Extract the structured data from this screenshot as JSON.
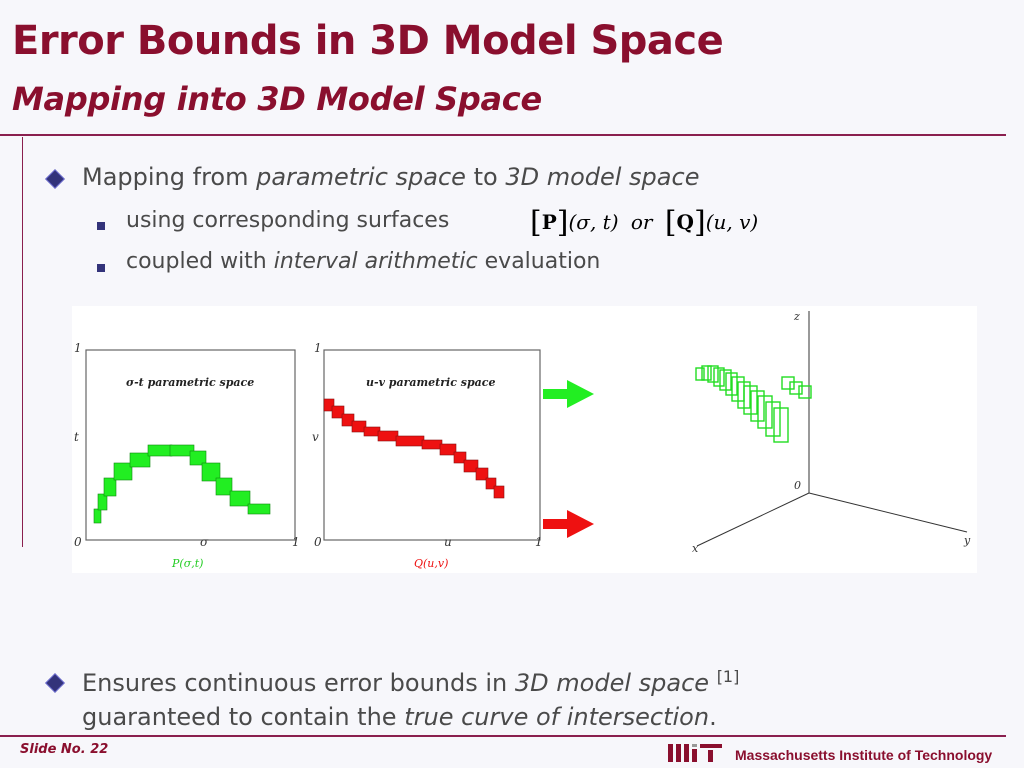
{
  "title": "Error Bounds in 3D Model Space",
  "subtitle": "Mapping into 3D Model Space",
  "bullet1": {
    "pre": "Mapping from ",
    "em1": "parametric space",
    "mid": " to ",
    "em2": "3D model space"
  },
  "sub1": {
    "text": "using corresponding surfaces"
  },
  "math": {
    "P": "P",
    "Pargs": "(σ, t)",
    "or": "or",
    "Q": "Q",
    "Qargs": "(u, v)"
  },
  "sub2": {
    "pre": "coupled with ",
    "em": "interval arithmetic",
    "post": " evaluation"
  },
  "bullet2": {
    "pre": "Ensures continuous error bounds in ",
    "em1": "3D model space",
    "cite": "[1]",
    "line2pre": "guaranteed to contain the ",
    "em2": "true curve of intersection",
    "post": "."
  },
  "figure": {
    "plot1": {
      "title": "σ-t parametric space",
      "ylabel": "t",
      "xlabel": "σ",
      "y1": "1",
      "x0": "0",
      "x1": "1",
      "caption": "P(σ,t)"
    },
    "plot2": {
      "title": "u-v parametric space",
      "ylabel": "v",
      "xlabel": "u",
      "y1": "1",
      "x0": "0",
      "x1": "1",
      "caption": "Q(u,v)"
    },
    "plot3d": {
      "z": "z",
      "x": "x",
      "y": "y",
      "origin": "0"
    },
    "colors": {
      "green": "#22ee22",
      "red": "#ee1111"
    }
  },
  "footer": {
    "slide": "Slide No. 22",
    "institution": "Massachusetts Institute of Technology"
  }
}
